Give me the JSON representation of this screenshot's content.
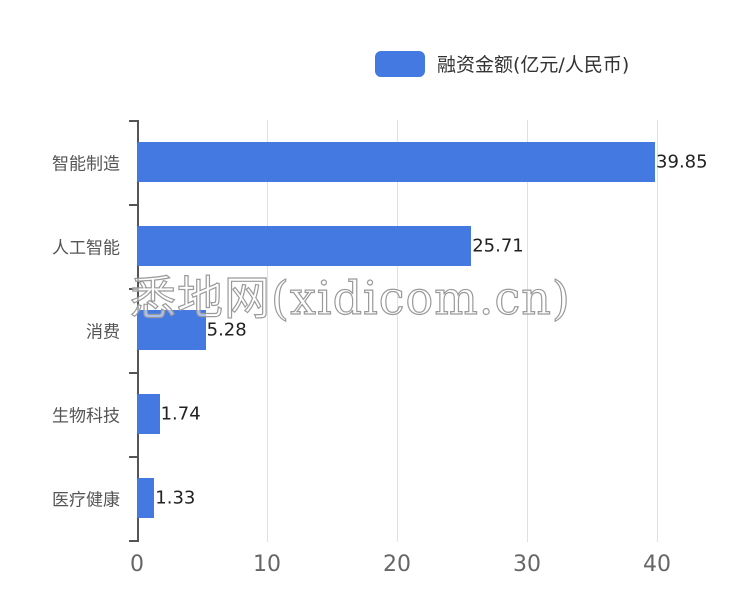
{
  "chart_data": {
    "type": "bar",
    "orientation": "horizontal",
    "title": "",
    "xlabel": "",
    "ylabel": "",
    "categories": [
      "智能制造",
      "人工智能",
      "消费",
      "生物科技",
      "医疗健康"
    ],
    "series": [
      {
        "name": "融资金额(亿元/人民币)",
        "values": [
          39.85,
          25.71,
          5.28,
          1.74,
          1.33
        ],
        "color": "#4479e1"
      }
    ],
    "value_labels": [
      "39.85",
      "25.71",
      "5.28",
      "1.74",
      "1.33"
    ],
    "xlim": [
      0,
      40
    ],
    "xticks": [
      "0",
      "10",
      "20",
      "30",
      "40"
    ],
    "grid": {
      "vertical": true,
      "horizontal": false
    },
    "legend_position": "top-right"
  },
  "legend": {
    "label": "融资金额(亿元/人民币)"
  },
  "watermark": "悉地网(xidicom.cn)"
}
